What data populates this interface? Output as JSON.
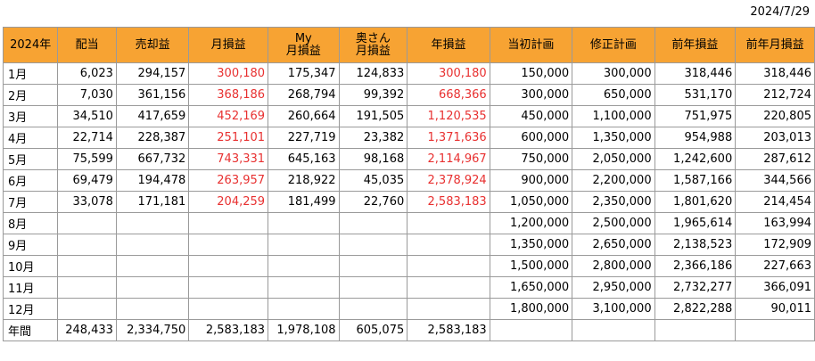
{
  "date": "2024/7/29",
  "headers": [
    "2024年",
    "配当",
    "売却益",
    "月損益",
    "My\n月損益",
    "奥さん\n月損益",
    "年損益",
    "当初計画",
    "修正計画",
    "前年損益",
    "前年月損益"
  ],
  "rows": [
    {
      "label": "1月",
      "cells": [
        "6,023",
        "294,157",
        "300,180",
        "175,347",
        "124,833",
        "300,180",
        "150,000",
        "300,000",
        "318,446",
        "318,446"
      ]
    },
    {
      "label": "2月",
      "cells": [
        "7,030",
        "361,156",
        "368,186",
        "268,794",
        "99,392",
        "668,366",
        "300,000",
        "650,000",
        "531,170",
        "212,724"
      ]
    },
    {
      "label": "3月",
      "cells": [
        "34,510",
        "417,659",
        "452,169",
        "260,664",
        "191,505",
        "1,120,535",
        "450,000",
        "1,100,000",
        "751,975",
        "220,805"
      ]
    },
    {
      "label": "4月",
      "cells": [
        "22,714",
        "228,387",
        "251,101",
        "227,719",
        "23,382",
        "1,371,636",
        "600,000",
        "1,350,000",
        "954,988",
        "203,013"
      ]
    },
    {
      "label": "5月",
      "cells": [
        "75,599",
        "667,732",
        "743,331",
        "645,163",
        "98,168",
        "2,114,967",
        "750,000",
        "2,050,000",
        "1,242,600",
        "287,612"
      ]
    },
    {
      "label": "6月",
      "cells": [
        "69,479",
        "194,478",
        "263,957",
        "218,922",
        "45,035",
        "2,378,924",
        "900,000",
        "2,200,000",
        "1,587,166",
        "344,566"
      ]
    },
    {
      "label": "7月",
      "cells": [
        "33,078",
        "171,181",
        "204,259",
        "181,499",
        "22,760",
        "2,583,183",
        "1,050,000",
        "2,350,000",
        "1,801,620",
        "214,454"
      ]
    },
    {
      "label": "8月",
      "cells": [
        "",
        "",
        "",
        "",
        "",
        "",
        "1,200,000",
        "2,500,000",
        "1,965,614",
        "163,994"
      ]
    },
    {
      "label": "9月",
      "cells": [
        "",
        "",
        "",
        "",
        "",
        "",
        "1,350,000",
        "2,650,000",
        "2,138,523",
        "172,909"
      ]
    },
    {
      "label": "10月",
      "cells": [
        "",
        "",
        "",
        "",
        "",
        "",
        "1,500,000",
        "2,800,000",
        "2,366,186",
        "227,663"
      ]
    },
    {
      "label": "11月",
      "cells": [
        "",
        "",
        "",
        "",
        "",
        "",
        "1,650,000",
        "2,950,000",
        "2,732,277",
        "366,091"
      ]
    },
    {
      "label": "12月",
      "cells": [
        "",
        "",
        "",
        "",
        "",
        "",
        "1,800,000",
        "3,100,000",
        "2,822,288",
        "90,011"
      ]
    },
    {
      "label": "年間",
      "cells": [
        "248,433",
        "2,334,750",
        "2,583,183",
        "1,978,108",
        "605,075",
        "2,583,183",
        "",
        "",
        "",
        ""
      ]
    }
  ],
  "red_columns": [
    2,
    5
  ],
  "red_color": "#e83030",
  "header_color": "#f7a333"
}
